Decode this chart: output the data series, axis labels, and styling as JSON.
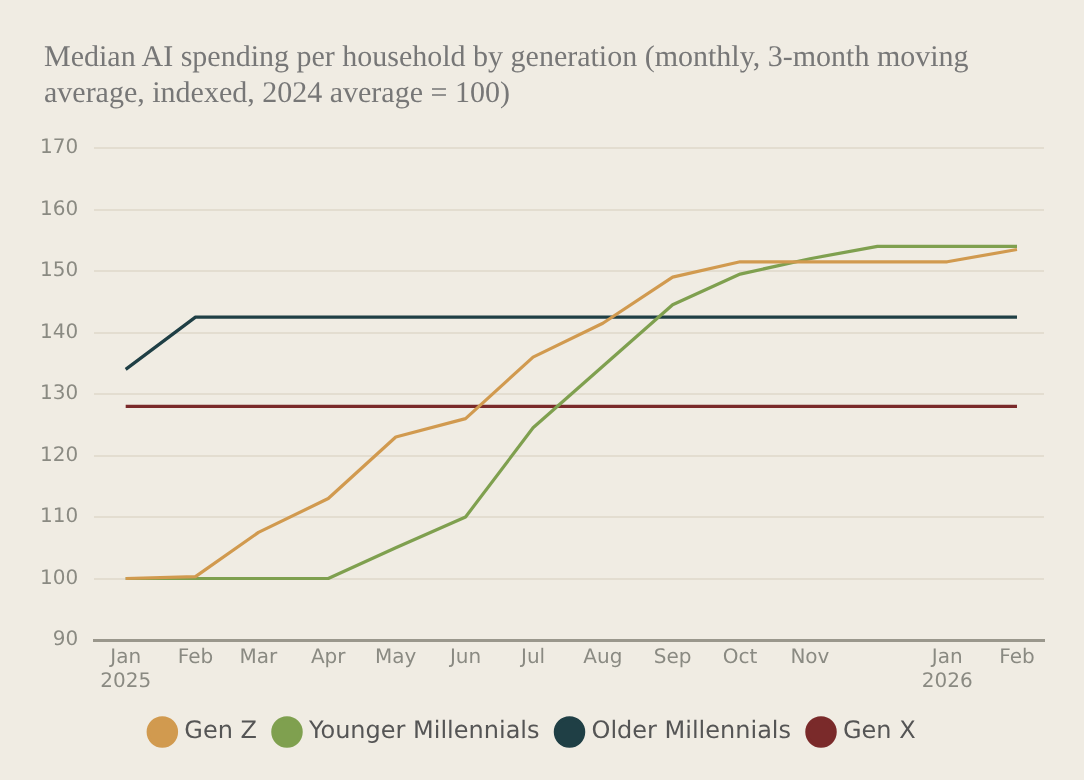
{
  "chart_data": {
    "type": "line",
    "subtitle": "Median AI spending per household by generation (monthly, 3-month moving average, indexed, 2024 average = 100)",
    "x": [
      "2025-01",
      "2025-02",
      "2025-03",
      "2025-04",
      "2025-05",
      "2025-06",
      "2025-07",
      "2025-08",
      "2025-09",
      "2025-10",
      "2025-11",
      "2025-12",
      "2026-01",
      "2026-02"
    ],
    "series": [
      {
        "name": "Gen Z",
        "color": "#d19a4f",
        "values": [
          100,
          100.3,
          107.5,
          113,
          123,
          126,
          136,
          141.5,
          149,
          151.5,
          151.5,
          151.5,
          151.5,
          153.5
        ]
      },
      {
        "name": "Younger Millennials",
        "color": "#7fa04f",
        "values": [
          100,
          100,
          100,
          100,
          105,
          110,
          124.5,
          134.5,
          144.5,
          149.5,
          152,
          154,
          154,
          154
        ]
      },
      {
        "name": "Older Millennials",
        "color": "#1f3f45",
        "values": [
          134,
          142.5,
          142.5,
          142.5,
          142.5,
          142.5,
          142.5,
          142.5,
          142.5,
          142.5,
          142.5,
          142.5,
          142.5,
          142.5
        ]
      },
      {
        "name": "Gen X",
        "color": "#7a2a2a",
        "values": [
          128,
          128,
          128,
          128,
          128,
          128,
          128,
          128,
          128,
          128,
          128,
          128,
          128,
          128
        ]
      }
    ],
    "xlim": [
      "2024-12-18",
      "2026-02-13"
    ],
    "xticks": [
      {
        "value": "2025-01",
        "label": "Jan 2025"
      },
      {
        "value": "2025-02",
        "label": "Feb"
      },
      {
        "value": "2025-03",
        "label": "Mar"
      },
      {
        "value": "2025-04",
        "label": "Apr"
      },
      {
        "value": "2025-05",
        "label": "May"
      },
      {
        "value": "2025-06",
        "label": "Jun"
      },
      {
        "value": "2025-07",
        "label": "Jul"
      },
      {
        "value": "2025-08",
        "label": "Aug"
      },
      {
        "value": "2025-09",
        "label": "Sep"
      },
      {
        "value": "2025-10",
        "label": "Oct"
      },
      {
        "value": "2025-11",
        "label": "Nov"
      },
      {
        "value": "2026-01",
        "label": "Jan 2026"
      },
      {
        "value": "2026-02",
        "label": "Feb"
      }
    ],
    "ylim": [
      90,
      170
    ],
    "yticks": [
      90,
      100,
      110,
      120,
      130,
      140,
      150,
      160,
      170
    ],
    "grid": "y",
    "legend": "bottom",
    "marker": "none",
    "line_style": "solid"
  }
}
